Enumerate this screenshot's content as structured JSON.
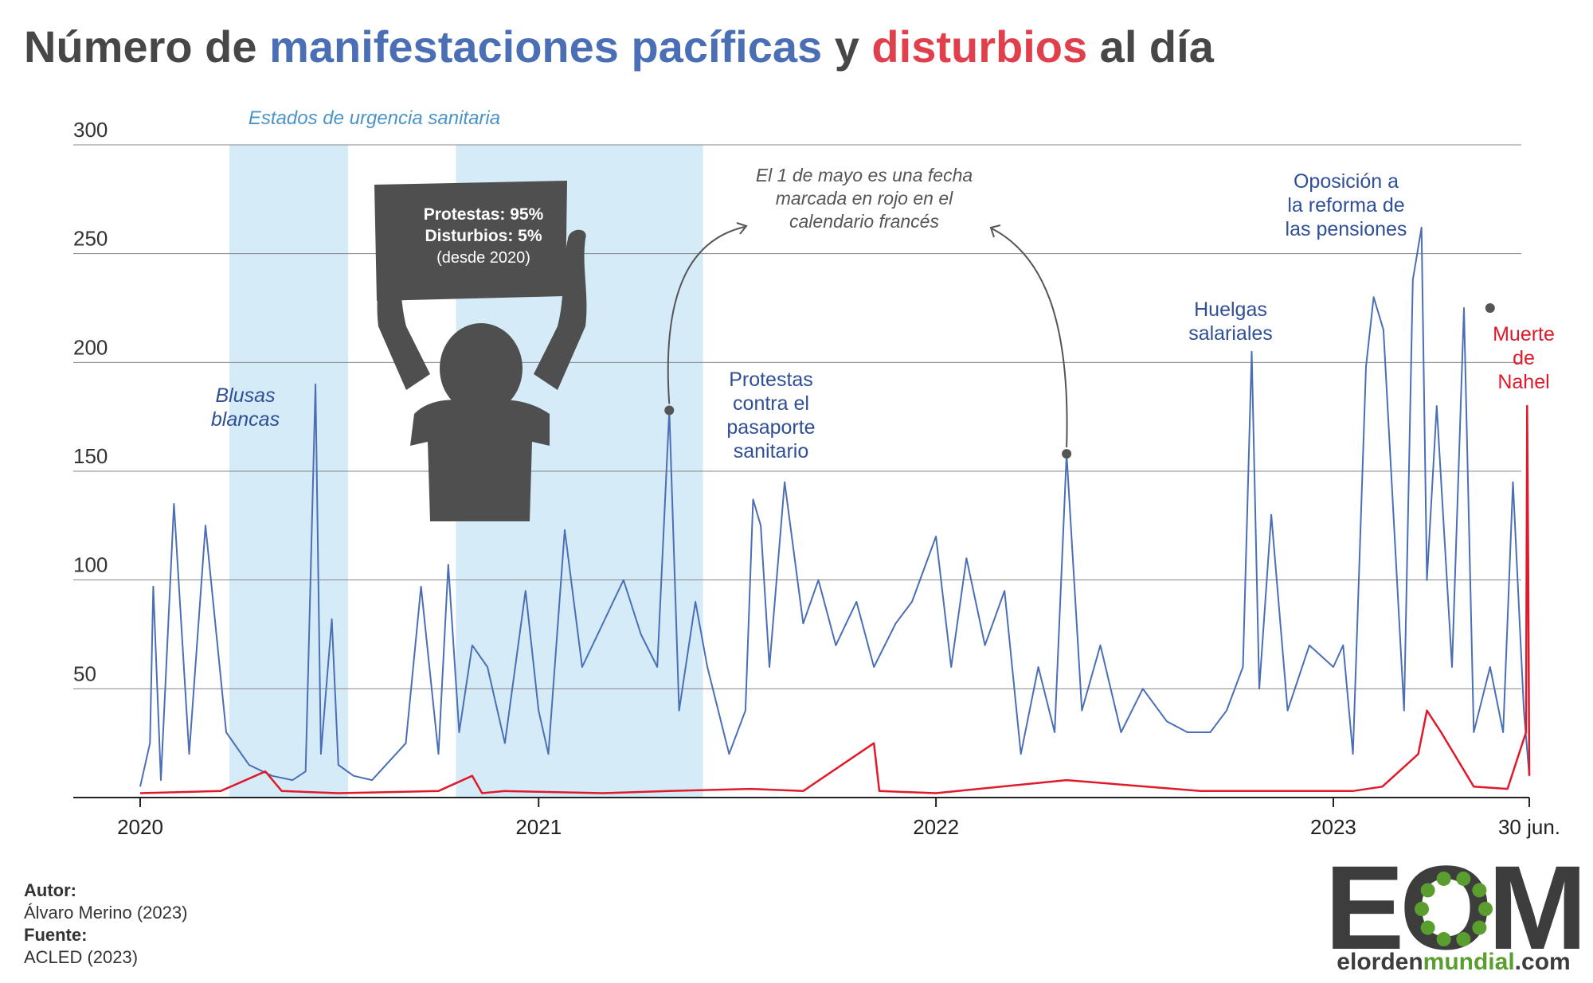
{
  "title": {
    "part1": "Número de ",
    "part2": "manifestaciones pacíficas",
    "part3": " y ",
    "part4": "disturbios",
    "part5": " al día"
  },
  "colors": {
    "protests": "#4a6fb5",
    "riots": "#e0192b",
    "shade": "#d6ebf8",
    "annotation_blue": "#2f4f96",
    "annotation_gray": "#555555"
  },
  "chart_data": {
    "type": "line",
    "ylim": [
      0,
      300
    ],
    "yticks": [
      50,
      100,
      150,
      200,
      250,
      300
    ],
    "xlabels": [
      "2020",
      "2021",
      "2022",
      "2023",
      "30 jun."
    ],
    "series": [
      {
        "color": "#4a6fb5",
        "x": [
          "2020-01-01",
          "2020-01-10",
          "2020-01-13",
          "2020-01-20",
          "2020-02-01",
          "2020-02-15",
          "2020-03-01",
          "2020-03-20",
          "2020-04-10",
          "2020-05-01",
          "2020-05-20",
          "2020-06-01",
          "2020-06-10",
          "2020-06-15",
          "2020-06-25",
          "2020-07-01",
          "2020-07-15",
          "2020-08-01",
          "2020-09-01",
          "2020-09-15",
          "2020-10-01",
          "2020-10-10",
          "2020-10-20",
          "2020-11-01",
          "2020-11-15",
          "2020-12-01",
          "2020-12-20",
          "2021-01-01",
          "2021-01-10",
          "2021-01-25",
          "2021-02-10",
          "2021-03-01",
          "2021-03-20",
          "2021-04-05",
          "2021-04-20",
          "2021-05-01",
          "2021-05-10",
          "2021-05-25",
          "2021-06-05",
          "2021-06-25",
          "2021-07-10",
          "2021-07-17",
          "2021-07-24",
          "2021-08-01",
          "2021-08-15",
          "2021-09-01",
          "2021-09-15",
          "2021-10-01",
          "2021-10-20",
          "2021-11-05",
          "2021-11-25",
          "2021-12-10",
          "2022-01-01",
          "2022-01-15",
          "2022-01-29",
          "2022-02-15",
          "2022-03-05",
          "2022-03-20",
          "2022-04-05",
          "2022-04-20",
          "2022-05-01",
          "2022-05-15",
          "2022-06-01",
          "2022-06-20",
          "2022-07-10",
          "2022-08-01",
          "2022-08-20",
          "2022-09-10",
          "2022-09-25",
          "2022-10-10",
          "2022-10-18",
          "2022-10-25",
          "2022-11-05",
          "2022-11-20",
          "2022-12-10",
          "2023-01-01",
          "2023-01-10",
          "2023-01-19",
          "2023-01-31",
          "2023-02-07",
          "2023-02-16",
          "2023-03-07",
          "2023-03-15",
          "2023-03-23",
          "2023-03-28",
          "2023-04-06",
          "2023-04-13",
          "2023-04-20",
          "2023-05-01",
          "2023-05-10",
          "2023-05-25",
          "2023-06-06",
          "2023-06-15",
          "2023-06-25",
          "2023-06-30"
        ],
        "y": [
          5,
          25,
          97,
          8,
          135,
          20,
          125,
          30,
          15,
          10,
          8,
          12,
          190,
          20,
          82,
          15,
          10,
          8,
          25,
          97,
          20,
          107,
          30,
          70,
          60,
          25,
          95,
          40,
          20,
          123,
          60,
          80,
          100,
          75,
          60,
          178,
          40,
          90,
          60,
          20,
          40,
          137,
          125,
          60,
          145,
          80,
          100,
          70,
          90,
          60,
          80,
          90,
          120,
          60,
          110,
          70,
          95,
          20,
          60,
          30,
          158,
          40,
          70,
          30,
          50,
          35,
          30,
          30,
          40,
          60,
          205,
          50,
          130,
          40,
          70,
          60,
          70,
          20,
          198,
          230,
          215,
          40,
          238,
          262,
          100,
          180,
          120,
          60,
          225,
          30,
          60,
          30,
          145,
          40,
          10
        ]
      },
      {
        "color": "#e0192b",
        "x": [
          "2020-01-01",
          "2020-03-15",
          "2020-04-25",
          "2020-05-10",
          "2020-07-01",
          "2020-10-01",
          "2020-11-01",
          "2020-11-10",
          "2020-12-01",
          "2021-03-01",
          "2021-05-01",
          "2021-07-15",
          "2021-09-01",
          "2021-11-05",
          "2021-11-10",
          "2022-01-01",
          "2022-05-01",
          "2022-09-01",
          "2023-01-19",
          "2023-02-15",
          "2023-03-20",
          "2023-03-28",
          "2023-04-10",
          "2023-05-10",
          "2023-06-10",
          "2023-06-27",
          "2023-06-28",
          "2023-06-29",
          "2023-06-30"
        ],
        "y": [
          2,
          3,
          12,
          3,
          2,
          3,
          10,
          2,
          3,
          2,
          3,
          4,
          3,
          25,
          3,
          2,
          8,
          3,
          3,
          5,
          20,
          40,
          30,
          5,
          4,
          30,
          180,
          110,
          10
        ]
      }
    ]
  },
  "annotations": {
    "shade_label": "Estados de urgencia sanitaria",
    "sign_line1": "Protestas: 95%",
    "sign_line2": "Disturbios: 5%",
    "sign_line3": "(desde 2020)",
    "blusas_line1": "Blusas",
    "blusas_line2": "blancas",
    "pasaporte_line1": "Protestas",
    "pasaporte_line2": "contra el",
    "pasaporte_line3": "pasaporte",
    "pasaporte_line4": "sanitario",
    "mayo_line1": "El 1 de mayo es una fecha",
    "mayo_line2": "marcada en rojo en el",
    "mayo_line3": "calendario francés",
    "huelgas_line1": "Huelgas",
    "huelgas_line2": "salariales",
    "pensiones_line1": "Oposición a",
    "pensiones_line2": "la reforma de",
    "pensiones_line3": "las pensiones",
    "nahel_line1": "Muerte",
    "nahel_line2": "de",
    "nahel_line3": "Nahel"
  },
  "footer": {
    "author_label": "Autor:",
    "author": "Álvaro Merino (2023)",
    "source_label": "Fuente:",
    "source": "ACLED (2023)"
  },
  "logo": {
    "letters": "EOM",
    "site_part1": "elorden",
    "site_part2": "mundial",
    "site_part3": ".com"
  }
}
